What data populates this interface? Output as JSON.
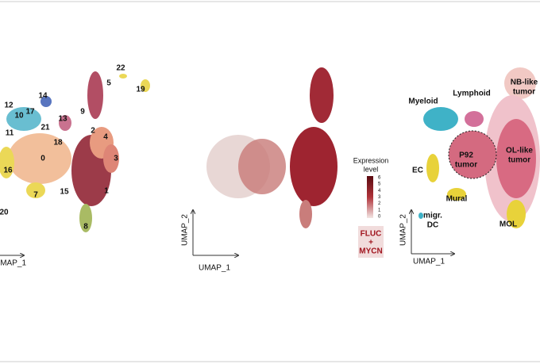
{
  "panels": [
    {
      "cluster_labels": [
        "22",
        "5",
        "19",
        "14",
        "12",
        "17",
        "10",
        "9",
        "13",
        "21",
        "11",
        "18",
        "2",
        "4",
        "0",
        "3",
        "16",
        "15",
        "1",
        "7",
        "20",
        "8"
      ],
      "x_axis_label": "UMAP_1"
    },
    {
      "y_axis_label": "UMAP_2",
      "x_axis_label": "UMAP_1",
      "legend": {
        "title_lines": [
          "Expression",
          "level"
        ],
        "ticks": [
          6,
          5,
          4,
          3,
          2,
          1,
          0
        ],
        "marker_lines": [
          "FLUC",
          "+",
          "MYCN"
        ]
      }
    },
    {
      "y_axis_label": "UMAP_2",
      "x_axis_label": "UMAP_1",
      "cell_types": [
        {
          "lines": [
            "Myeloid"
          ]
        },
        {
          "lines": [
            "Lymphoid"
          ]
        },
        {
          "lines": [
            "NB-like",
            "tumor"
          ]
        },
        {
          "lines": [
            "P92",
            "tumor"
          ]
        },
        {
          "lines": [
            "OL-like",
            "tumor"
          ]
        },
        {
          "lines": [
            "EC"
          ]
        },
        {
          "lines": [
            "Mural"
          ]
        },
        {
          "lines": [
            "migr.",
            "DC"
          ]
        },
        {
          "lines": [
            "MOL"
          ]
        }
      ]
    }
  ]
}
